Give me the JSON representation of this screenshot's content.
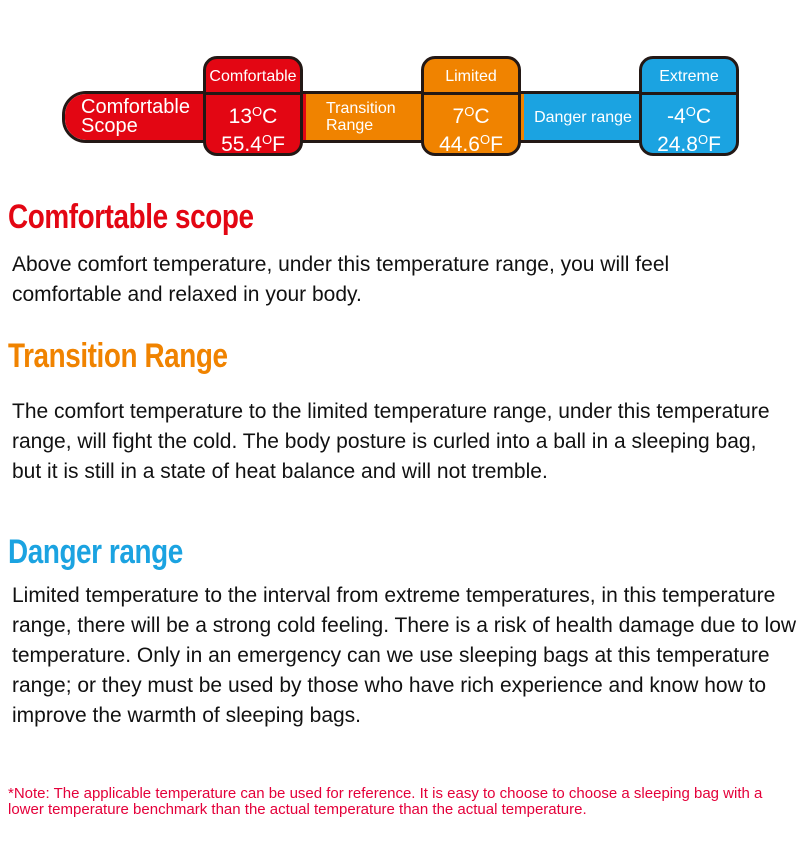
{
  "scale_bar": {
    "colors": {
      "comfortable": "#e30613",
      "transition": "#f08300",
      "danger": "#1ba3e1",
      "outline": "#231815"
    },
    "segments": [
      {
        "line1": "Comfortable",
        "line2": "Scope"
      },
      {
        "line1": "Transition",
        "line2": "Range"
      },
      {
        "label": "Danger range"
      }
    ],
    "markers": [
      {
        "label": "Comfortable",
        "celsius": "13",
        "fahrenheit": "55.4"
      },
      {
        "label": "Limited",
        "celsius": "7",
        "fahrenheit": "44.6"
      },
      {
        "label": "Extreme",
        "celsius": "-4",
        "fahrenheit": "24.8"
      }
    ],
    "deg": "O",
    "c": "C",
    "f": "F"
  },
  "sections": [
    {
      "title": "Comfortable scope",
      "color": "#e30613",
      "body": "Above comfort temperature, under this temperature range, you will feel comfortable and relaxed in your body."
    },
    {
      "title": "Transition Range",
      "color": "#f08300",
      "body": "The comfort temperature to the limited temperature range, under this temperature range, will fight the cold. The body posture is curled into a ball in a sleeping bag, but it is still in a state of heat balance and will not tremble."
    },
    {
      "title": "Danger range",
      "color": "#1ba3e1",
      "body": "Limited temperature to the interval from extreme temperatures, in this temperature range, there will be a strong cold feeling. There is a risk of health damage due to low temperature. Only in an emergency can we use sleeping bags at this temperature range; or they must be used by those who have rich experience and know how to improve the warmth of sleeping bags."
    }
  ],
  "note": "*Note: The applicable temperature can be used for reference. It is easy to choose to choose a sleeping bag with a lower temperature benchmark than the actual temperature than the actual temperature."
}
